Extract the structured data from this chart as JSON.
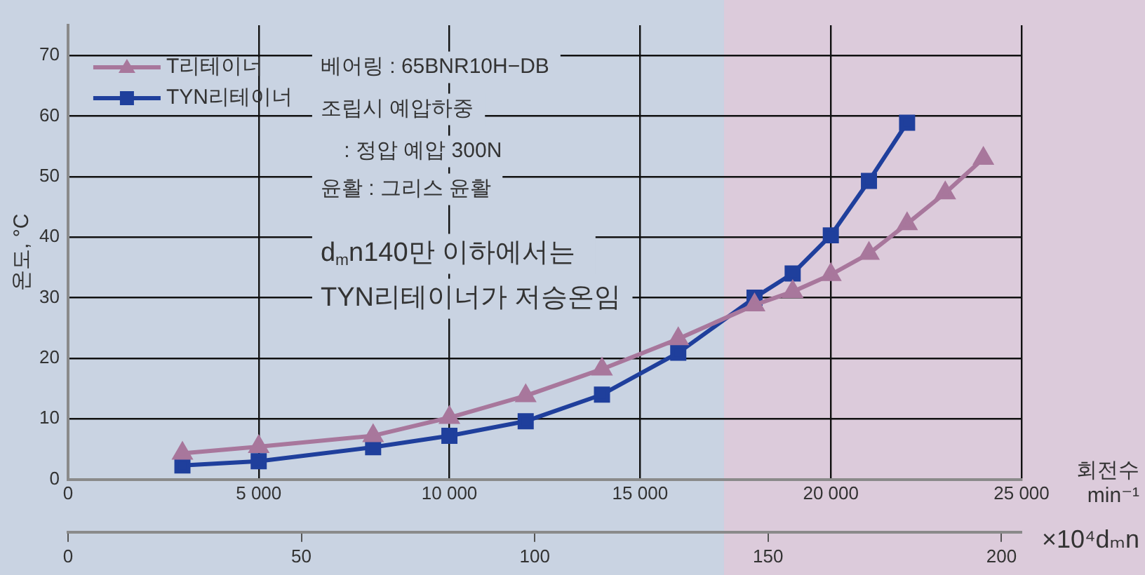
{
  "chart_data": {
    "type": "line",
    "xlabel": "회전수 min⁻¹",
    "ylabel": "온도, °C",
    "x2label": "×10⁴dₘn",
    "x": [
      3000,
      5000,
      8000,
      10000,
      12000,
      14000,
      16000,
      18000,
      19000,
      20000,
      21000,
      22000,
      23000,
      24000
    ],
    "series": [
      {
        "name": "T리테이너",
        "color": "#a8779c",
        "marker": "triangle",
        "values": [
          4.3,
          5.4,
          7.2,
          10.2,
          13.8,
          18.2,
          23.2,
          28.8,
          31,
          33.8,
          37.3,
          42.2,
          47.3,
          53
        ]
      },
      {
        "name": "TYN리테이너",
        "color": "#1f3f9c",
        "marker": "square",
        "values": [
          2.3,
          3.0,
          5.3,
          7.2,
          9.6,
          14,
          20.9,
          30,
          34,
          40.3,
          49.3,
          58.9,
          null,
          null
        ]
      }
    ],
    "xlim": [
      0,
      25000
    ],
    "xticks": [
      0,
      {
        "value": 5000,
        "label": "5 000"
      },
      {
        "value": 10000,
        "label": "10 000"
      },
      {
        "value": 15000,
        "label": "15 000"
      },
      {
        "value": 20000,
        "label": "20 000"
      },
      {
        "value": 25000,
        "label": "25 000"
      }
    ],
    "ylim": [
      0,
      75
    ],
    "yticks": [
      0,
      10,
      20,
      30,
      40,
      50,
      60,
      70
    ],
    "x2lim": [
      0,
      204.3
    ],
    "x2ticks": [
      0,
      50,
      100,
      150,
      200
    ],
    "bands": [
      {
        "axis": "x",
        "from": 17200,
        "to": 25000,
        "color": "#dccbdb"
      }
    ],
    "annotations": [
      "베어링 : 65BNR10H−DB",
      "조립시 예압하중",
      "    : 정압 예압 300N",
      "윤활 : 그리스 윤활",
      "d$_{m}$n140만 이하에서는",
      "TYN리테이너가 저승온임"
    ],
    "grid": true,
    "legend": "top left",
    "line_style": "solid"
  }
}
